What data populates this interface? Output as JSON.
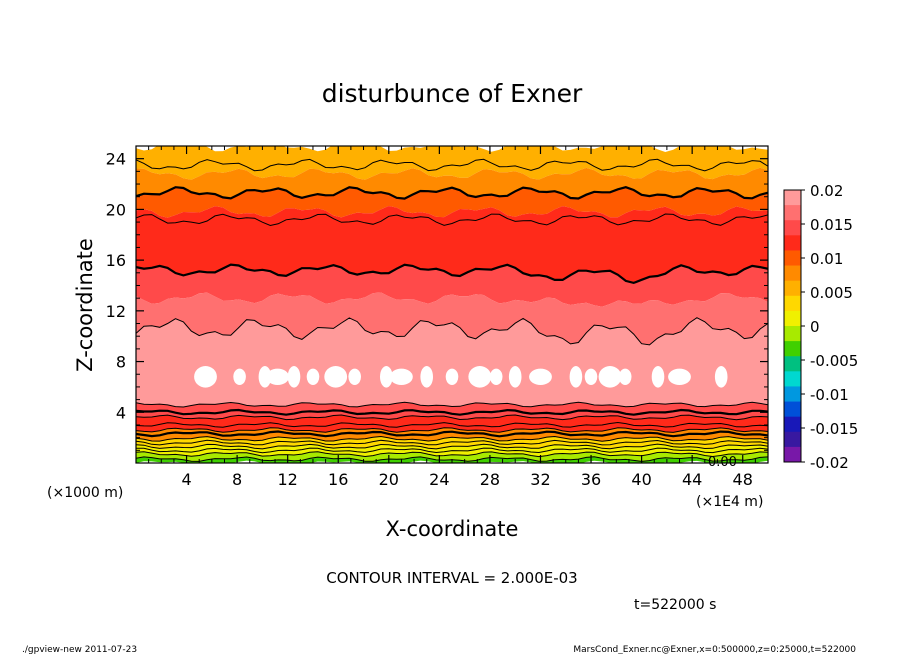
{
  "chart_data": {
    "type": "heatmap",
    "title": "disturbunce of Exner",
    "xlabel": "X-coordinate",
    "ylabel": "Z-coordinate",
    "x_unit_left": "(×1000 m)",
    "x_unit_right": "(×1E4 m)",
    "xlim": [
      0,
      50
    ],
    "ylim": [
      0,
      25
    ],
    "xticks": [
      4,
      8,
      12,
      16,
      20,
      24,
      28,
      32,
      36,
      40,
      44,
      48
    ],
    "yticks": [
      4,
      8,
      12,
      16,
      20,
      24
    ],
    "colorbar": {
      "range": [
        -0.02,
        0.02
      ],
      "tick_labels": [
        "0.02",
        "0.015",
        "0.01",
        "0.005",
        "0",
        "-0.005",
        "-0.01",
        "-0.015",
        "-0.02"
      ],
      "tick_values": [
        0.02,
        0.015,
        0.01,
        0.005,
        0,
        -0.005,
        -0.01,
        -0.015,
        -0.02
      ],
      "colors": [
        "#ff9a9a",
        "#ff7070",
        "#ff4a4a",
        "#ff2a1a",
        "#ff5a00",
        "#ff8a00",
        "#ffb000",
        "#ffd800",
        "#f0f000",
        "#a8ea00",
        "#40d000",
        "#00c080",
        "#00d8d0",
        "#0098e0",
        "#0050d8",
        "#1818b8",
        "#3818a0",
        "#7818a8"
      ]
    },
    "layers": [
      {
        "z_bottom": 22.8,
        "z_top": 25.0,
        "value": 0.01,
        "color": "#ffb000"
      },
      {
        "z_bottom": 21.3,
        "z_top": 22.8,
        "value": 0.011,
        "color": "#ff8a00"
      },
      {
        "z_bottom": 19.8,
        "z_top": 21.3,
        "value": 0.013,
        "color": "#ff5a00"
      },
      {
        "z_bottom": 15.2,
        "z_top": 19.8,
        "value": 0.015,
        "color": "#ff2a1a"
      },
      {
        "z_bottom": 13.0,
        "z_top": 15.2,
        "value": 0.017,
        "color": "#ff4a4a"
      },
      {
        "z_bottom": 10.6,
        "z_top": 13.0,
        "value": 0.018,
        "color": "#ff7070"
      },
      {
        "z_bottom": 4.6,
        "z_top": 10.6,
        "value": 0.019,
        "color": "#ff9a9a"
      },
      {
        "z_bottom": 3.6,
        "z_top": 4.6,
        "value": 0.017,
        "color": "#ff4a4a"
      },
      {
        "z_bottom": 2.6,
        "z_top": 3.6,
        "value": 0.014,
        "color": "#ff2a1a"
      },
      {
        "z_bottom": 1.9,
        "z_top": 2.6,
        "value": 0.011,
        "color": "#ff8a00"
      },
      {
        "z_bottom": 1.3,
        "z_top": 1.9,
        "value": 0.008,
        "color": "#ffd800"
      },
      {
        "z_bottom": 0.7,
        "z_top": 1.3,
        "value": 0.005,
        "color": "#f0f000"
      },
      {
        "z_bottom": 0.3,
        "z_top": 0.7,
        "value": 0.002,
        "color": "#a8ea00"
      },
      {
        "z_bottom": 0.0,
        "z_top": 0.3,
        "value": 0.0,
        "color": "#40d000"
      }
    ],
    "contour_levels_z": [
      0.3,
      0.7,
      1.0,
      1.3,
      1.6,
      1.9,
      2.3,
      2.6,
      3.0,
      3.6,
      4.0,
      4.6,
      10.6,
      15.2,
      19.2,
      21.3,
      23.5
    ],
    "contour_label": "0.00",
    "white_patches_z": 6.8,
    "white_patches_x": [
      5.5,
      8.2,
      10.2,
      11.2,
      12.5,
      14.0,
      15.8,
      17.3,
      19.8,
      21.0,
      23.0,
      25.0,
      27.2,
      28.5,
      30.0,
      32.0,
      34.8,
      36.0,
      37.5,
      38.7,
      41.3,
      43.0,
      46.3
    ]
  },
  "annotations": {
    "contour_interval": "CONTOUR INTERVAL = 2.000E-03",
    "time": "t=522000  s",
    "footer_left": "./gpview-new   2011-07-23",
    "footer_right": "MarsCond_Exner.nc@Exner,x=0:500000,z=0:25000,t=522000"
  }
}
